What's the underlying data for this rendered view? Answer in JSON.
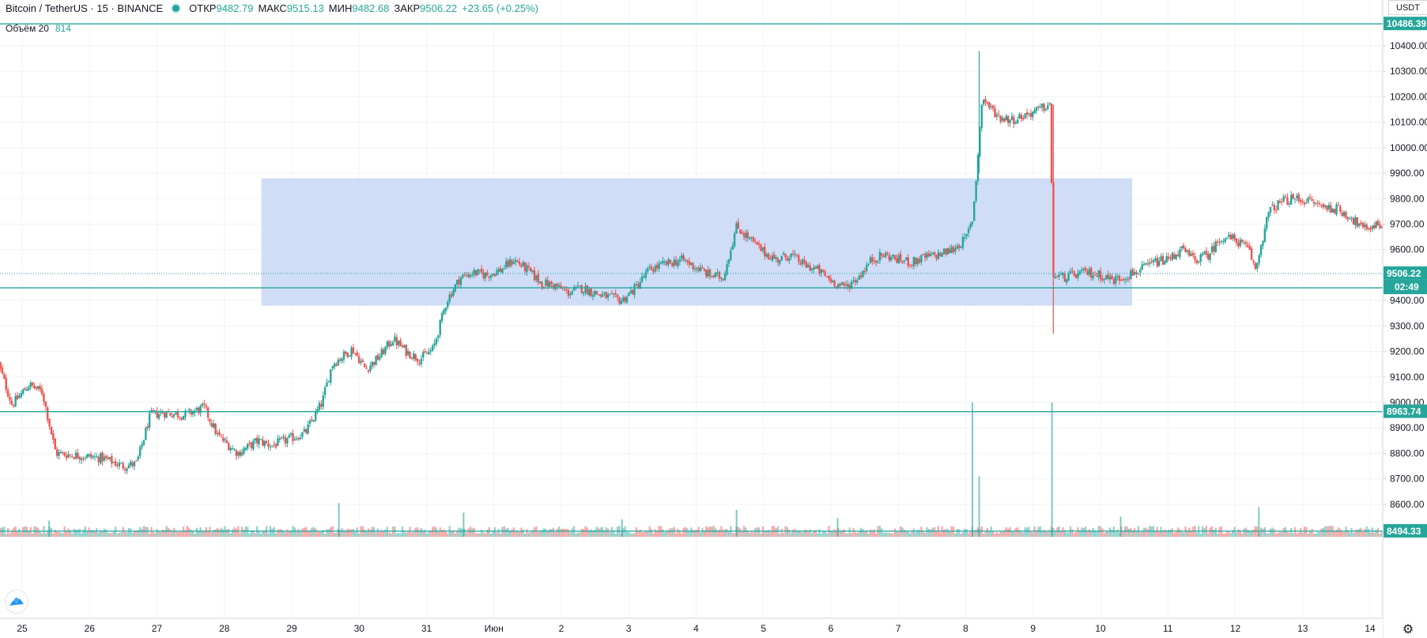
{
  "header": {
    "symbol": "Bitcoin / TetherUS · 15 · BINANCE",
    "open_label": "ОТКР",
    "open_value": "9482.79",
    "high_label": "МАКС",
    "high_value": "9515.13",
    "low_label": "МИН",
    "low_value": "9482.68",
    "close_label": "ЗАКР",
    "close_value": "9506.22",
    "change": "+23.65 (+0.25%)"
  },
  "volume_legend": {
    "label": "Объём 20",
    "value": "814"
  },
  "price_axis": {
    "currency": "USDT",
    "ticks": [
      10400,
      10300,
      10200,
      10100,
      10000,
      9900,
      9800,
      9700,
      9600,
      9500,
      9400,
      9300,
      9200,
      9100,
      9000,
      8900,
      8800,
      8700,
      8600
    ],
    "tick_labels": [
      "10400.00",
      "10300.00",
      "10200.00",
      "10100.00",
      "10000.00",
      "9900.00",
      "9800.00",
      "9700.00",
      "9600.00",
      "9500.00",
      "9400.00",
      "9300.00",
      "9200.00",
      "9100.00",
      "9000.00",
      "8900.00",
      "8800.00",
      "8700.00",
      "8600.00"
    ]
  },
  "time_axis": {
    "labels": [
      "25",
      "26",
      "27",
      "28",
      "29",
      "30",
      "31",
      "Июн",
      "2",
      "3",
      "4",
      "5",
      "6",
      "7",
      "8",
      "9",
      "10",
      "11",
      "12",
      "13",
      "14"
    ]
  },
  "colors": {
    "up": "#26a69a",
    "down": "#ef5350",
    "line": "#26a69a",
    "rect": "#ccdbf7"
  },
  "chart_data": {
    "type": "candlestick",
    "symbol": "BTCUSDT",
    "interval": "15",
    "ylim": [
      8480,
      10520
    ],
    "horizontal_lines": [
      {
        "price": 10486.39,
        "label": "10486.39"
      },
      {
        "price": 9449.84,
        "label": "9449.84"
      },
      {
        "price": 8963.74,
        "label": "8963.74"
      },
      {
        "price": 8494.33,
        "label": "8494.33"
      }
    ],
    "last_price": {
      "price": 9506.22,
      "label": "9506.22",
      "countdown": "02:49"
    },
    "range_box": {
      "x_start": 3.55,
      "x_end": 16.47,
      "y_low": 9380,
      "y_high": 9880
    },
    "path": [
      [
        -0.35,
        9150
      ],
      [
        -0.15,
        8990
      ],
      [
        0.1,
        9070
      ],
      [
        0.3,
        9040
      ],
      [
        0.5,
        8800
      ],
      [
        0.9,
        8790
      ],
      [
        1.2,
        8780
      ],
      [
        1.5,
        8750
      ],
      [
        1.7,
        8760
      ],
      [
        1.9,
        8950
      ],
      [
        2.1,
        8960
      ],
      [
        2.4,
        8950
      ],
      [
        2.7,
        8980
      ],
      [
        2.9,
        8870
      ],
      [
        3.2,
        8800
      ],
      [
        3.5,
        8850
      ],
      [
        3.7,
        8830
      ],
      [
        3.9,
        8850
      ],
      [
        4.2,
        8880
      ],
      [
        4.45,
        9000
      ],
      [
        4.6,
        9150
      ],
      [
        4.9,
        9210
      ],
      [
        5.1,
        9130
      ],
      [
        5.3,
        9180
      ],
      [
        5.5,
        9250
      ],
      [
        5.7,
        9200
      ],
      [
        5.9,
        9170
      ],
      [
        6.1,
        9210
      ],
      [
        6.3,
        9400
      ],
      [
        6.5,
        9490
      ],
      [
        6.7,
        9510
      ],
      [
        6.9,
        9500
      ],
      [
        7.1,
        9520
      ],
      [
        7.3,
        9560
      ],
      [
        7.5,
        9520
      ],
      [
        7.7,
        9470
      ],
      [
        7.9,
        9460
      ],
      [
        8.1,
        9430
      ],
      [
        8.3,
        9450
      ],
      [
        8.6,
        9420
      ],
      [
        8.9,
        9400
      ],
      [
        9.1,
        9450
      ],
      [
        9.3,
        9520
      ],
      [
        9.5,
        9540
      ],
      [
        9.8,
        9560
      ],
      [
        10.0,
        9530
      ],
      [
        10.2,
        9500
      ],
      [
        10.4,
        9490
      ],
      [
        10.6,
        9690
      ],
      [
        10.8,
        9640
      ],
      [
        11.0,
        9590
      ],
      [
        11.2,
        9560
      ],
      [
        11.4,
        9580
      ],
      [
        11.6,
        9540
      ],
      [
        11.8,
        9520
      ],
      [
        12.0,
        9480
      ],
      [
        12.2,
        9450
      ],
      [
        12.4,
        9490
      ],
      [
        12.6,
        9560
      ],
      [
        12.8,
        9580
      ],
      [
        13.0,
        9560
      ],
      [
        13.2,
        9550
      ],
      [
        13.4,
        9570
      ],
      [
        13.6,
        9580
      ],
      [
        13.8,
        9600
      ],
      [
        14.0,
        9640
      ],
      [
        14.1,
        9720
      ],
      [
        14.15,
        9860
      ],
      [
        14.2,
        10050
      ],
      [
        14.25,
        10200
      ],
      [
        14.35,
        10160
      ],
      [
        14.5,
        10120
      ],
      [
        14.7,
        10110
      ],
      [
        14.9,
        10130
      ],
      [
        15.1,
        10150
      ],
      [
        15.25,
        10170
      ],
      [
        15.3,
        9500
      ],
      [
        15.45,
        9490
      ],
      [
        15.6,
        9500
      ],
      [
        15.8,
        9510
      ],
      [
        16.0,
        9500
      ],
      [
        16.2,
        9480
      ],
      [
        16.4,
        9500
      ],
      [
        16.6,
        9520
      ],
      [
        16.8,
        9550
      ],
      [
        17.0,
        9560
      ],
      [
        17.2,
        9600
      ],
      [
        17.4,
        9560
      ],
      [
        17.6,
        9580
      ],
      [
        17.8,
        9650
      ],
      [
        18.0,
        9640
      ],
      [
        18.2,
        9600
      ],
      [
        18.3,
        9520
      ],
      [
        18.4,
        9640
      ],
      [
        18.5,
        9750
      ],
      [
        18.7,
        9790
      ],
      [
        18.9,
        9800
      ],
      [
        19.1,
        9790
      ],
      [
        19.3,
        9770
      ],
      [
        19.5,
        9760
      ],
      [
        19.7,
        9730
      ],
      [
        19.9,
        9680
      ],
      [
        20.1,
        9700
      ],
      [
        20.3,
        9690
      ],
      [
        20.5,
        9680
      ],
      [
        20.7,
        9660
      ],
      [
        20.9,
        9610
      ],
      [
        21.1,
        9600
      ],
      [
        21.3,
        9640
      ],
      [
        21.5,
        9680
      ],
      [
        21.7,
        9680
      ],
      [
        21.9,
        9650
      ],
      [
        22.1,
        9620
      ],
      [
        22.3,
        9660
      ],
      [
        22.5,
        9680
      ],
      [
        22.7,
        9690
      ],
      [
        22.9,
        9660
      ],
      [
        23.1,
        9660
      ],
      [
        23.3,
        9620
      ],
      [
        23.5,
        9540
      ],
      [
        23.6,
        9460
      ],
      [
        23.8,
        9500
      ],
      [
        23.9,
        9520
      ],
      [
        24.0,
        9750
      ],
      [
        24.2,
        9770
      ],
      [
        24.4,
        9760
      ],
      [
        24.6,
        9740
      ],
      [
        24.8,
        9750
      ],
      [
        25.0,
        9700
      ],
      [
        25.2,
        9690
      ],
      [
        25.4,
        9700
      ],
      [
        25.6,
        9720
      ],
      [
        25.8,
        9700
      ],
      [
        26.0,
        9700
      ],
      [
        26.2,
        9680
      ],
      [
        26.4,
        9690
      ],
      [
        26.6,
        9690
      ],
      [
        26.8,
        9710
      ],
      [
        27.0,
        9720
      ],
      [
        27.2,
        9700
      ],
      [
        27.4,
        9760
      ],
      [
        27.6,
        9770
      ],
      [
        27.8,
        9750
      ],
      [
        28.0,
        9740
      ],
      [
        28.2,
        9750
      ],
      [
        28.4,
        9780
      ],
      [
        28.6,
        9760
      ],
      [
        28.7,
        9790
      ],
      [
        28.8,
        9850
      ],
      [
        29.0,
        9890
      ],
      [
        29.2,
        9910
      ],
      [
        29.4,
        9870
      ],
      [
        29.6,
        9820
      ],
      [
        29.8,
        9790
      ],
      [
        29.95,
        9700
      ],
      [
        30.1,
        9590
      ],
      [
        30.2,
        9500
      ],
      [
        30.25,
        9280
      ],
      [
        30.35,
        9270
      ],
      [
        30.5,
        9300
      ],
      [
        30.7,
        9260
      ],
      [
        30.85,
        9300
      ],
      [
        31.0,
        9330
      ],
      [
        31.2,
        9350
      ],
      [
        31.4,
        9360
      ],
      [
        31.5,
        9420
      ],
      [
        31.6,
        9460
      ],
      [
        31.7,
        9470
      ],
      [
        31.85,
        9490
      ],
      [
        31.95,
        9506.22
      ]
    ],
    "volume": {
      "label": "Объём 20",
      "last_value": 814,
      "spikes": [
        {
          "x": 14.1,
          "rel": 1.0
        },
        {
          "x": 15.28,
          "rel": 1.0
        },
        {
          "x": 14.2,
          "rel": 0.45
        },
        {
          "x": 29.8,
          "rel": 0.65
        },
        {
          "x": 28.75,
          "rel": 0.35
        },
        {
          "x": 26.2,
          "rel": 0.18
        },
        {
          "x": 23.55,
          "rel": 0.25
        },
        {
          "x": 24.0,
          "rel": 0.22
        },
        {
          "x": 4.7,
          "rel": 0.25
        },
        {
          "x": 6.55,
          "rel": 0.18
        },
        {
          "x": 10.6,
          "rel": 0.2
        },
        {
          "x": 18.35,
          "rel": 0.22
        },
        {
          "x": 30.25,
          "rel": 0.4
        },
        {
          "x": 29.0,
          "rel": 0.2
        },
        {
          "x": 16.3,
          "rel": 0.15
        },
        {
          "x": 12.1,
          "rel": 0.14
        },
        {
          "x": 8.9,
          "rel": 0.13
        },
        {
          "x": 0.4,
          "rel": 0.12
        }
      ]
    }
  }
}
